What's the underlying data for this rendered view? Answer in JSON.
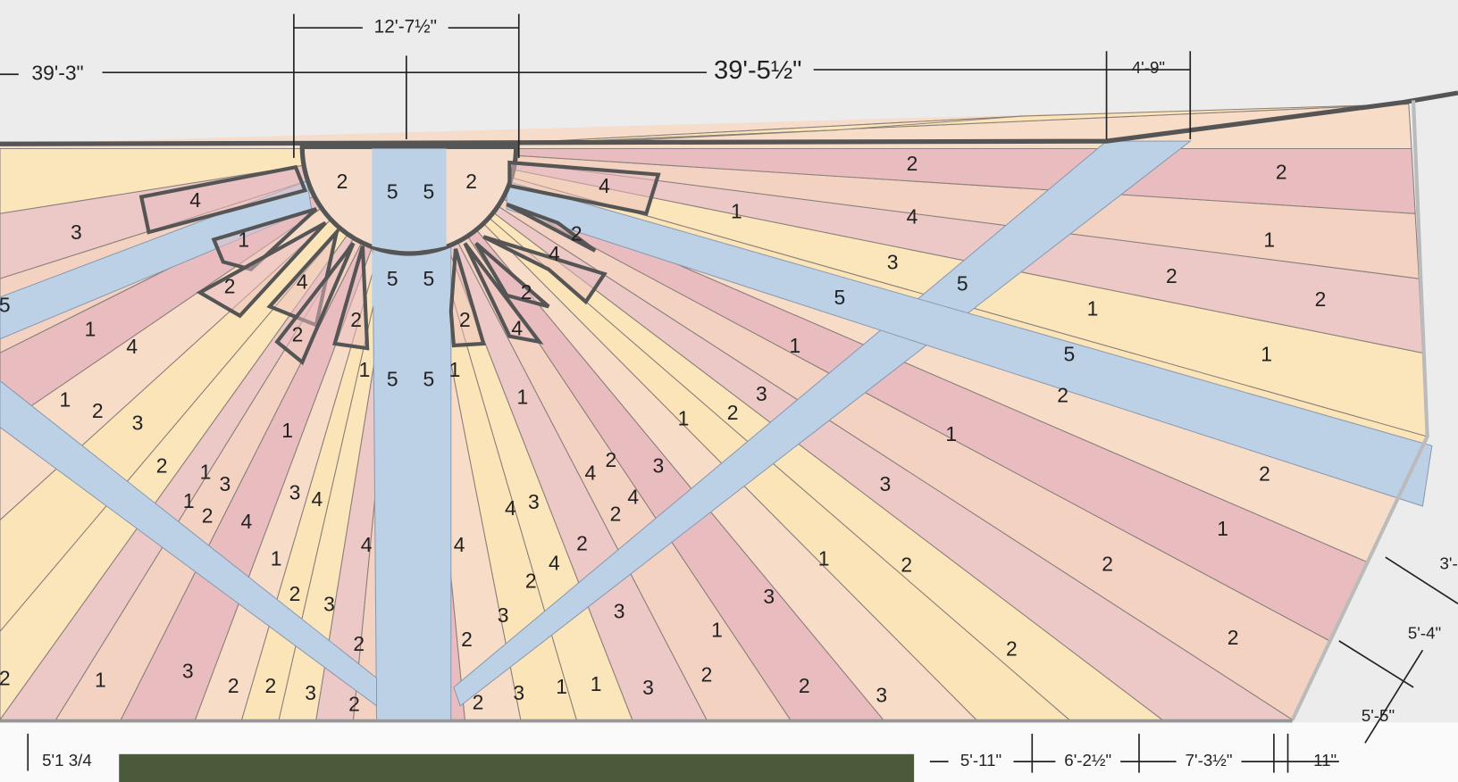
{
  "dimensions": [
    "39'-3\"",
    "12'-7½\"",
    "39'-5½\"",
    "4'-9\"",
    "3'-",
    "5'-4\"",
    "5'-5\"",
    "5'1 3/4",
    "5'-11\"",
    "6'-2½\"",
    "7'-3½\"",
    "11\""
  ],
  "zones": [
    "2",
    "5",
    "5",
    "2",
    "4",
    "3",
    "1",
    "2",
    "4",
    "2",
    "2",
    "5",
    "5",
    "5",
    "5",
    "1",
    "1",
    "2",
    "2",
    "4",
    "2",
    "4",
    "4",
    "1",
    "2",
    "4",
    "3",
    "5",
    "5",
    "2",
    "1",
    "2",
    "2",
    "1",
    "5",
    "1",
    "2",
    "1",
    "1",
    "3",
    "2",
    "1",
    "1",
    "3",
    "3",
    "2",
    "1",
    "2",
    "1",
    "2",
    "3",
    "2",
    "2",
    "2",
    "3",
    "1",
    "2",
    "3",
    "1",
    "1",
    "3",
    "2",
    "2",
    "3",
    "3",
    "2",
    "2",
    "4",
    "4",
    "3",
    "2",
    "4",
    "4",
    "2",
    "4",
    "4",
    "2",
    "2",
    "3",
    "2",
    "2",
    "3",
    "1",
    "2",
    "3",
    "2",
    "1",
    "4",
    "2",
    "1",
    "3",
    "1",
    "2",
    "3",
    "4",
    "1",
    "3",
    "2",
    "1",
    "4",
    "1",
    "5"
  ]
}
